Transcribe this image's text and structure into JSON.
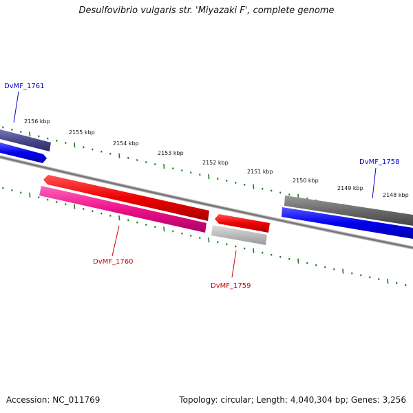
{
  "title": "Desulfovibrio vulgaris str. 'Miyazaki F', complete genome",
  "footer": {
    "accession": "Accession: NC_011769",
    "summary": "Topology: circular; Length: 4,040,304 bp; Genes: 3,256"
  },
  "colors": {
    "label_blue": "#0000cc",
    "label_red": "#cc0000",
    "tick_green": "#1a7a1a",
    "backbone": "#888888"
  },
  "kbp_labels": [
    "2156 kbp",
    "2155 kbp",
    "2154 kbp",
    "2153 kbp",
    "2152 kbp",
    "2151 kbp",
    "2150 kbp",
    "2149 kbp",
    "2148 kbp"
  ],
  "genes": {
    "dvmf_1761": "DvMF_1761",
    "dvmf_1760": "DvMF_1760",
    "dvmf_1759": "DvMF_1759",
    "dvmf_1758": "DvMF_1758"
  }
}
